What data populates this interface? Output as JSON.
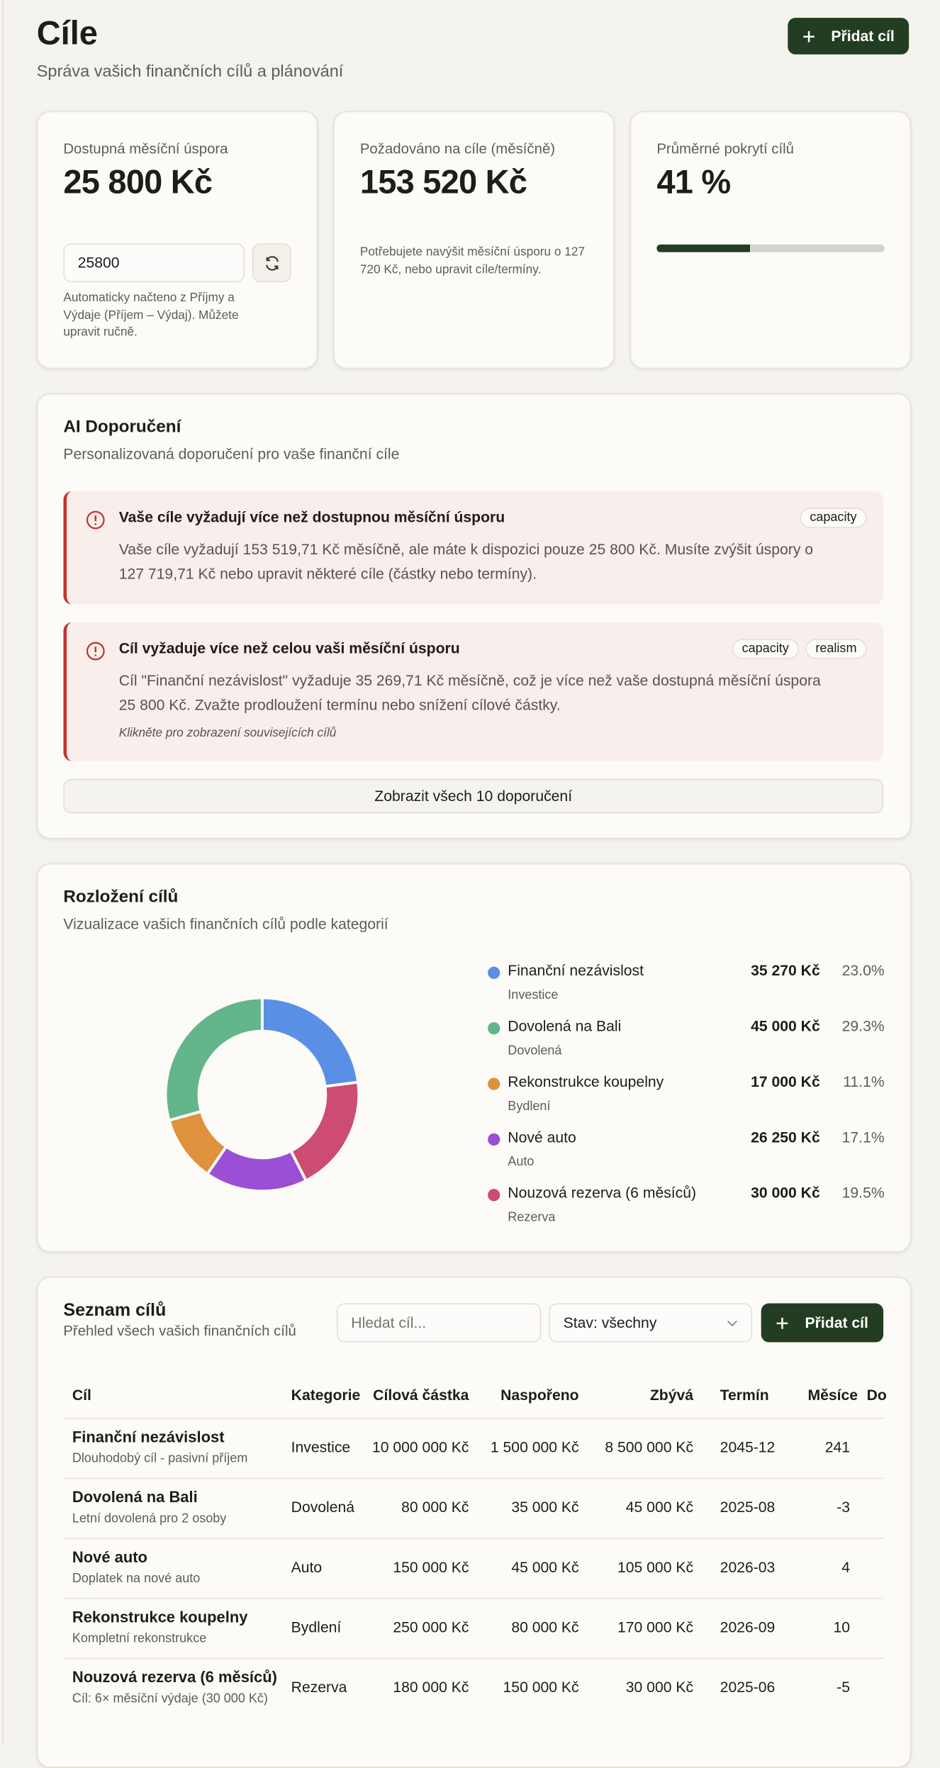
{
  "header": {
    "title": "Cíle",
    "subtitle": "Správa vašich finančních cílů a plánování",
    "add_button": "Přidat cíl"
  },
  "cards": [
    {
      "label": "Dostupná měsíční úspora",
      "value": "25 800 Kč",
      "input": "25800",
      "note": "Automaticky načteno z Příjmy a Výdaje (Příjem – Výdaj). Můžete upravit ručně."
    },
    {
      "label": "Požadováno na cíle (měsíčně)",
      "value": "153 520 Kč",
      "note": "Potřebujete navýšit měsíční úsporu o 127 720 Kč, nebo upravit cíle/termíny."
    },
    {
      "label": "Průměrné pokrytí cílů",
      "value": "41 %",
      "progress": 41
    }
  ],
  "ai": {
    "title": "AI Doporučení",
    "subtitle": "Personalizovaná doporučení pro vaše finanční cíle",
    "items": [
      {
        "title": "Vaše cíle vyžadují více než dostupnou měsíční úsporu",
        "tags": [
          "capacity"
        ],
        "text": "Vaše cíle vyžadují 153 519,71 Kč měsíčně, ale máte k dispozici pouze 25 800 Kč. Musíte zvýšit úspory o 127 719,71 Kč nebo upravit některé cíle (částky nebo termíny)."
      },
      {
        "title": "Cíl vyžaduje více než celou vaši měsíční úsporu",
        "tags": [
          "capacity",
          "realism"
        ],
        "text": "Cíl \"Finanční nezávislost\" vyžaduje 35 269,71 Kč měsíčně, což je více než vaše dostupná měsíční úspora 25 800 Kč. Zvažte prodloužení termínu nebo snížení cílové částky.",
        "link": "Klikněte pro zobrazení souvisejících cílů"
      }
    ],
    "button": "Zobrazit všech 10 doporučení"
  },
  "chart_data": {
    "type": "pie",
    "donut": true,
    "title": "Rozložení cílů",
    "subtitle": "Vizualizace vašich finančních cílů podle kategorií",
    "categories": [
      "Finanční nezávislost",
      "Dovolená na Bali",
      "Rekonstrukce koupelny",
      "Nové auto",
      "Nouzová rezerva (6 měsíců)"
    ],
    "groups": [
      "Investice",
      "Dovolená",
      "Bydlení",
      "Auto",
      "Rezerva"
    ],
    "values": [
      35270,
      45000,
      17000,
      26250,
      30000
    ],
    "value_labels": [
      "35 270 Kč",
      "45 000 Kč",
      "17 000 Kč",
      "26 250 Kč",
      "30 000 Kč"
    ],
    "percent_labels": [
      "23.0%",
      "29.3%",
      "11.1%",
      "17.1%",
      "19.5%"
    ],
    "colors": [
      "#5a8fe6",
      "#63b58b",
      "#df913d",
      "#9b4fd5",
      "#cc4c72"
    ]
  },
  "goals": {
    "title": "Seznam cílů",
    "subtitle": "Přehled všech vašich finančních cílů",
    "search_placeholder": "Hledat cíl...",
    "filter": "Stav: všechny",
    "add_button": "Přidat cíl",
    "columns": [
      "Cíl",
      "Kategorie",
      "Cílová částka",
      "Naspořeno",
      "Zbývá",
      "Termín",
      "Měsíce",
      "Do"
    ],
    "rows": [
      {
        "name": "Finanční nezávislost",
        "desc": "Dlouhodobý cíl - pasivní příjem",
        "cells": [
          "Investice",
          "10 000 000 Kč",
          "1 500 000 Kč",
          "8 500 000 Kč",
          "2045-12",
          241
        ]
      },
      {
        "name": "Dovolená na Bali",
        "desc": "Letní dovolená pro 2 osoby",
        "cells": [
          "Dovolená",
          "80 000 Kč",
          "35 000 Kč",
          "45 000 Kč",
          "2025-08",
          -3
        ]
      },
      {
        "name": "Nové auto",
        "desc": "Doplatek na nové auto",
        "cells": [
          "Auto",
          "150 000 Kč",
          "45 000 Kč",
          "105 000 Kč",
          "2026-03",
          4
        ]
      },
      {
        "name": "Rekonstrukce koupelny",
        "desc": "Kompletní rekonstrukce",
        "cells": [
          "Bydlení",
          "250 000 Kč",
          "80 000 Kč",
          "170 000 Kč",
          "2026-09",
          10
        ]
      },
      {
        "name": "Nouzová rezerva (6 měsíců)",
        "desc": "Cíl: 6× měsíční výdaje (30 000 Kč)",
        "cells": [
          "Rezerva",
          "180 000 Kč",
          "150 000 Kč",
          "30 000 Kč",
          "2025-06",
          -5
        ]
      }
    ]
  }
}
